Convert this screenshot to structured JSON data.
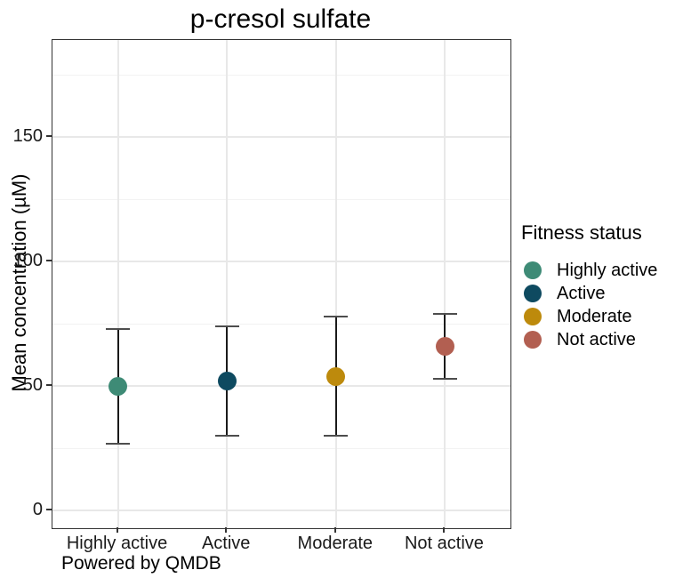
{
  "title": "p-cresol sulfate",
  "caption": "Powered by QMDB",
  "y_axis_title": "Mean concentration (µM)",
  "legend": {
    "title": "Fitness status",
    "items": [
      {
        "label": "Highly active",
        "color": "#3e8b76"
      },
      {
        "label": "Active",
        "color": "#0e4a60"
      },
      {
        "label": "Moderate",
        "color": "#bd8a0c"
      },
      {
        "label": "Not active",
        "color": "#b25f51"
      }
    ]
  },
  "chart_data": {
    "type": "scatter",
    "title": "p-cresol sulfate",
    "xlabel": "",
    "ylabel": "Mean concentration (µM)",
    "categories": [
      "Highly active",
      "Active",
      "Moderate",
      "Not active"
    ],
    "points": [
      {
        "category": "Highly active",
        "mean": 50,
        "lower": 27,
        "upper": 73,
        "color": "#3e8b76"
      },
      {
        "category": "Active",
        "mean": 52,
        "lower": 30,
        "upper": 74,
        "color": "#0e4a60"
      },
      {
        "category": "Moderate",
        "mean": 54,
        "lower": 30,
        "upper": 78,
        "color": "#bd8a0c"
      },
      {
        "category": "Not active",
        "mean": 66,
        "lower": 53,
        "upper": 79,
        "color": "#b25f51"
      }
    ],
    "error_bar_type": "range",
    "ylim": [
      -7,
      189
    ],
    "yticks": [
      0,
      50,
      100,
      150
    ],
    "yticks_minor": [
      25,
      75,
      125,
      175
    ],
    "grid": true,
    "legend_position": "right",
    "legend_title": "Fitness status",
    "caption": "Powered by QMDB"
  }
}
